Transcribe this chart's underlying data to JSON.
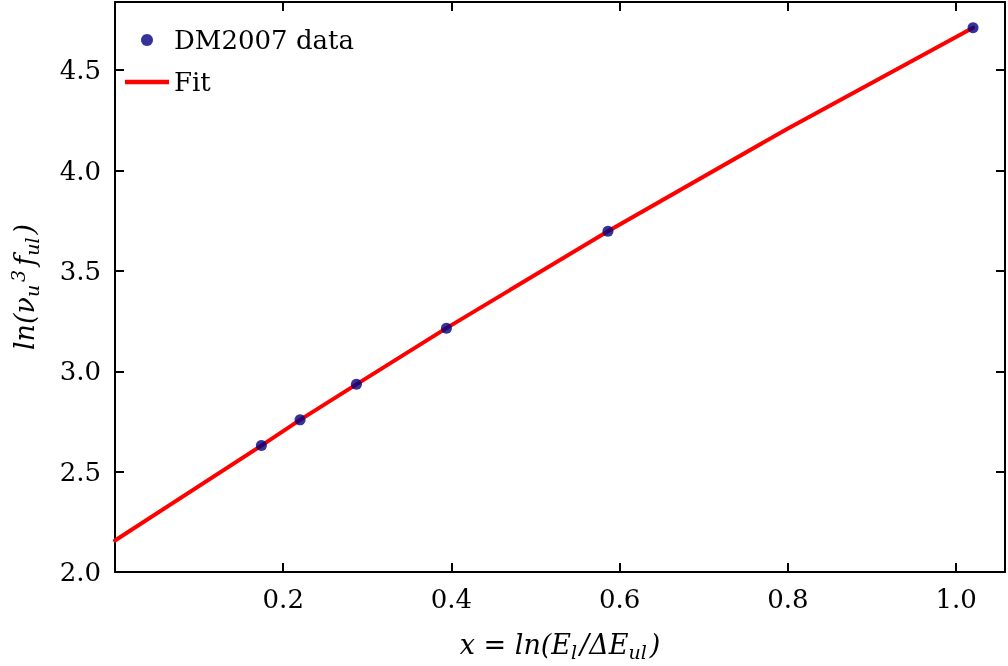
{
  "chart_data": {
    "type": "scatter",
    "xlabel": "x = ln(E$_{l}$/ΔE$_{ul}$)",
    "ylabel": "ln(ν$_{u}$$^{3}$f$_{ul}$)",
    "series": [
      {
        "name": "DM2007 data",
        "color": "#00007f",
        "marker": "circle",
        "x": [
          0.174,
          0.22,
          0.287,
          0.394,
          0.586,
          1.02
        ],
        "values": [
          2.63,
          2.758,
          2.935,
          3.215,
          3.698,
          4.712
        ]
      },
      {
        "name": "Fit",
        "type": "line",
        "color": "#ff0000",
        "marker": "none",
        "line_style": "solid",
        "x": [
          0,
          0.174,
          0.22,
          0.287,
          0.394,
          0.586,
          0.8,
          1.02
        ],
        "values": [
          2.157,
          2.63,
          2.758,
          2.935,
          3.215,
          3.698,
          4.21,
          4.712
        ]
      }
    ],
    "xlim": [
      0,
      1.058
    ],
    "xticks": [
      0.2,
      0.4,
      0.6,
      0.8,
      {
        "value": 1.0,
        "label": "1.0"
      }
    ],
    "ylim": [
      2.0,
      4.84
    ],
    "yticks": [
      {
        "value": 2.0,
        "label": "2.0"
      },
      2.5,
      {
        "value": 3.0,
        "label": "3.0"
      },
      3.5,
      {
        "value": 4.0,
        "label": "4.0"
      },
      4.5
    ],
    "grid": false,
    "legend": "top left"
  }
}
